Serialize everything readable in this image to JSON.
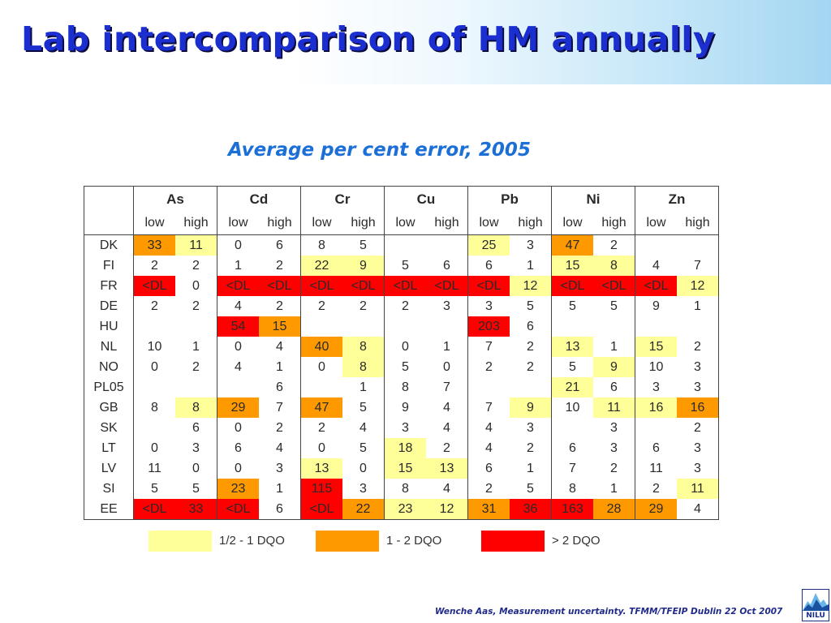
{
  "title": "Lab intercomparison of HM annually",
  "subtitle": "Average per cent error, 2005",
  "table": {
    "elements": [
      "As",
      "Cd",
      "Cr",
      "Cu",
      "Pb",
      "Ni",
      "Zn"
    ],
    "sublabels": [
      "low",
      "high"
    ],
    "rows": [
      {
        "country": "DK",
        "cells": [
          [
            "33",
            "o"
          ],
          [
            "11",
            "y"
          ],
          [
            "0",
            ""
          ],
          [
            "6",
            ""
          ],
          [
            "8",
            ""
          ],
          [
            "5",
            ""
          ],
          [
            "",
            ""
          ],
          [
            "",
            ""
          ],
          [
            "25",
            "y"
          ],
          [
            "3",
            ""
          ],
          [
            "47",
            "o"
          ],
          [
            "2",
            ""
          ],
          [
            "",
            ""
          ],
          [
            "",
            ""
          ]
        ]
      },
      {
        "country": "FI",
        "cells": [
          [
            "2",
            ""
          ],
          [
            "2",
            ""
          ],
          [
            "1",
            ""
          ],
          [
            "2",
            ""
          ],
          [
            "22",
            "y"
          ],
          [
            "9",
            "y"
          ],
          [
            "5",
            ""
          ],
          [
            "6",
            ""
          ],
          [
            "6",
            ""
          ],
          [
            "1",
            ""
          ],
          [
            "15",
            "y"
          ],
          [
            "8",
            "y"
          ],
          [
            "4",
            ""
          ],
          [
            "7",
            ""
          ]
        ]
      },
      {
        "country": "FR",
        "cells": [
          [
            "<DL",
            "r"
          ],
          [
            "0",
            ""
          ],
          [
            "<DL",
            "r"
          ],
          [
            "<DL",
            "r"
          ],
          [
            "<DL",
            "r"
          ],
          [
            "<DL",
            "r"
          ],
          [
            "<DL",
            "r"
          ],
          [
            "<DL",
            "r"
          ],
          [
            "<DL",
            "r"
          ],
          [
            "12",
            "y"
          ],
          [
            "<DL",
            "r"
          ],
          [
            "<DL",
            "r"
          ],
          [
            "<DL",
            "r"
          ],
          [
            "12",
            "y"
          ]
        ]
      },
      {
        "country": "DE",
        "cells": [
          [
            "2",
            ""
          ],
          [
            "2",
            ""
          ],
          [
            "4",
            ""
          ],
          [
            "2",
            ""
          ],
          [
            "2",
            ""
          ],
          [
            "2",
            ""
          ],
          [
            "2",
            ""
          ],
          [
            "3",
            ""
          ],
          [
            "3",
            ""
          ],
          [
            "5",
            ""
          ],
          [
            "5",
            ""
          ],
          [
            "5",
            ""
          ],
          [
            "9",
            ""
          ],
          [
            "1",
            ""
          ]
        ]
      },
      {
        "country": "HU",
        "cells": [
          [
            "",
            ""
          ],
          [
            "",
            ""
          ],
          [
            "54",
            "r"
          ],
          [
            "15",
            "o"
          ],
          [
            "",
            ""
          ],
          [
            "",
            ""
          ],
          [
            "",
            ""
          ],
          [
            "",
            ""
          ],
          [
            "203",
            "r"
          ],
          [
            "6",
            ""
          ],
          [
            "",
            ""
          ],
          [
            "",
            ""
          ],
          [
            "",
            ""
          ],
          [
            "",
            ""
          ]
        ]
      },
      {
        "country": "NL",
        "cells": [
          [
            "10",
            ""
          ],
          [
            "1",
            ""
          ],
          [
            "0",
            ""
          ],
          [
            "4",
            ""
          ],
          [
            "40",
            "o"
          ],
          [
            "8",
            "y"
          ],
          [
            "0",
            ""
          ],
          [
            "1",
            ""
          ],
          [
            "7",
            ""
          ],
          [
            "2",
            ""
          ],
          [
            "13",
            "y"
          ],
          [
            "1",
            ""
          ],
          [
            "15",
            "y"
          ],
          [
            "2",
            ""
          ]
        ]
      },
      {
        "country": "NO",
        "cells": [
          [
            "0",
            ""
          ],
          [
            "2",
            ""
          ],
          [
            "4",
            ""
          ],
          [
            "1",
            ""
          ],
          [
            "0",
            ""
          ],
          [
            "8",
            "y"
          ],
          [
            "5",
            ""
          ],
          [
            "0",
            ""
          ],
          [
            "2",
            ""
          ],
          [
            "2",
            ""
          ],
          [
            "5",
            ""
          ],
          [
            "9",
            "y"
          ],
          [
            "10",
            ""
          ],
          [
            "3",
            ""
          ]
        ]
      },
      {
        "country": "PL05",
        "cells": [
          [
            "",
            ""
          ],
          [
            "",
            ""
          ],
          [
            "",
            ""
          ],
          [
            "6",
            ""
          ],
          [
            "",
            ""
          ],
          [
            "1",
            ""
          ],
          [
            "8",
            ""
          ],
          [
            "7",
            ""
          ],
          [
            "",
            ""
          ],
          [
            "",
            ""
          ],
          [
            "21",
            "y"
          ],
          [
            "6",
            ""
          ],
          [
            "3",
            ""
          ],
          [
            "3",
            ""
          ]
        ]
      },
      {
        "country": "GB",
        "cells": [
          [
            "8",
            ""
          ],
          [
            "8",
            "y"
          ],
          [
            "29",
            "o"
          ],
          [
            "7",
            ""
          ],
          [
            "47",
            "o"
          ],
          [
            "5",
            ""
          ],
          [
            "9",
            ""
          ],
          [
            "4",
            ""
          ],
          [
            "7",
            ""
          ],
          [
            "9",
            "y"
          ],
          [
            "10",
            ""
          ],
          [
            "11",
            "y"
          ],
          [
            "16",
            "y"
          ],
          [
            "16",
            "o"
          ]
        ]
      },
      {
        "country": "SK",
        "cells": [
          [
            "",
            ""
          ],
          [
            "6",
            ""
          ],
          [
            "0",
            ""
          ],
          [
            "2",
            ""
          ],
          [
            "2",
            ""
          ],
          [
            "4",
            ""
          ],
          [
            "3",
            ""
          ],
          [
            "4",
            ""
          ],
          [
            "4",
            ""
          ],
          [
            "3",
            ""
          ],
          [
            "",
            ""
          ],
          [
            "3",
            ""
          ],
          [
            "",
            ""
          ],
          [
            "2",
            ""
          ]
        ]
      },
      {
        "country": "LT",
        "cells": [
          [
            "0",
            ""
          ],
          [
            "3",
            ""
          ],
          [
            "6",
            ""
          ],
          [
            "4",
            ""
          ],
          [
            "0",
            ""
          ],
          [
            "5",
            ""
          ],
          [
            "18",
            "y"
          ],
          [
            "2",
            ""
          ],
          [
            "4",
            ""
          ],
          [
            "2",
            ""
          ],
          [
            "6",
            ""
          ],
          [
            "3",
            ""
          ],
          [
            "6",
            ""
          ],
          [
            "3",
            ""
          ]
        ]
      },
      {
        "country": "LV",
        "cells": [
          [
            "11",
            ""
          ],
          [
            "0",
            ""
          ],
          [
            "0",
            ""
          ],
          [
            "3",
            ""
          ],
          [
            "13",
            "y"
          ],
          [
            "0",
            ""
          ],
          [
            "15",
            "y"
          ],
          [
            "13",
            "y"
          ],
          [
            "6",
            ""
          ],
          [
            "1",
            ""
          ],
          [
            "7",
            ""
          ],
          [
            "2",
            ""
          ],
          [
            "11",
            ""
          ],
          [
            "3",
            ""
          ]
        ]
      },
      {
        "country": "SI",
        "cells": [
          [
            "5",
            ""
          ],
          [
            "5",
            ""
          ],
          [
            "23",
            "o"
          ],
          [
            "1",
            ""
          ],
          [
            "115",
            "r"
          ],
          [
            "3",
            ""
          ],
          [
            "8",
            ""
          ],
          [
            "4",
            ""
          ],
          [
            "2",
            ""
          ],
          [
            "5",
            ""
          ],
          [
            "8",
            ""
          ],
          [
            "1",
            ""
          ],
          [
            "2",
            ""
          ],
          [
            "11",
            "y"
          ]
        ]
      },
      {
        "country": "EE",
        "cells": [
          [
            "<DL",
            "r"
          ],
          [
            "33",
            "r"
          ],
          [
            "<DL",
            "r"
          ],
          [
            "6",
            ""
          ],
          [
            "<DL",
            "r"
          ],
          [
            "22",
            "o"
          ],
          [
            "23",
            "y"
          ],
          [
            "12",
            "y"
          ],
          [
            "31",
            "o"
          ],
          [
            "36",
            "r"
          ],
          [
            "163",
            "r"
          ],
          [
            "28",
            "o"
          ],
          [
            "29",
            "o"
          ],
          [
            "4",
            ""
          ]
        ]
      }
    ]
  },
  "legend": [
    {
      "label": "1/2 - 1 DQO",
      "color": "#ffff99"
    },
    {
      "label": "1 - 2 DQO",
      "color": "#ff9900"
    },
    {
      "label": "> 2 DQO",
      "color": "#ff0000"
    }
  ],
  "footer": "Wenche Aas, Measurement uncertainty. TFMM/TFEIP Dublin 22 Oct 2007",
  "logo_text": "NILU"
}
